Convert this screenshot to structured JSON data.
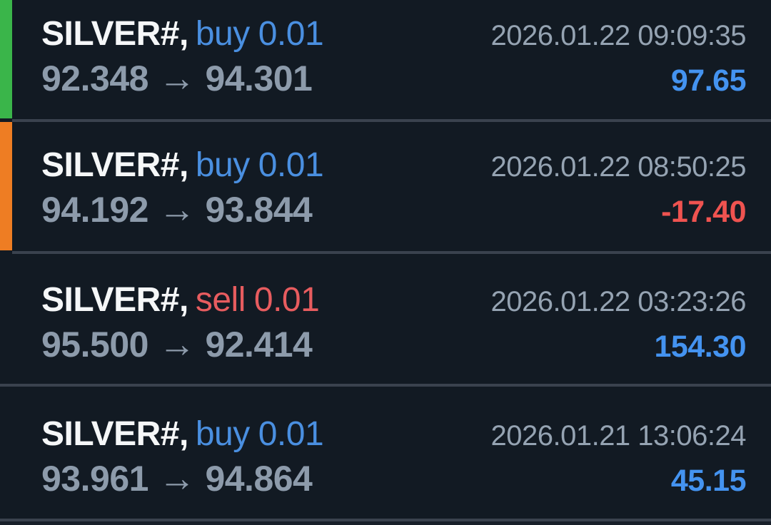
{
  "colors": {
    "background": "#121a23",
    "divider": "#3a424e",
    "symbol_text": "#f5f7f8",
    "price_text": "#8d9bab",
    "time_text": "#95a3b2",
    "buy_text": "#4a8fe0",
    "sell_text": "#e75c5f",
    "profit_text": "#4493f0",
    "loss_text": "#ef5350",
    "indicator_green": "#3ab54a",
    "indicator_orange": "#ee7d23"
  },
  "trades": [
    {
      "symbol": "SILVER#,",
      "side": "buy",
      "volume": "0.01",
      "time": "2026.01.22 09:09:35",
      "open_price": "92.348",
      "arrow": "→",
      "close_price": "94.301",
      "profit": "97.65",
      "profit_state": "profit",
      "indicator": "green"
    },
    {
      "symbol": "SILVER#,",
      "side": "buy",
      "volume": "0.01",
      "time": "2026.01.22 08:50:25",
      "open_price": "94.192",
      "arrow": "→",
      "close_price": "93.844",
      "profit": "-17.40",
      "profit_state": "loss",
      "indicator": "orange"
    },
    {
      "symbol": "SILVER#,",
      "side": "sell",
      "volume": "0.01",
      "time": "2026.01.22 03:23:26",
      "open_price": "95.500",
      "arrow": "→",
      "close_price": "92.414",
      "profit": "154.30",
      "profit_state": "profit",
      "indicator": "none"
    },
    {
      "symbol": "SILVER#,",
      "side": "buy",
      "volume": "0.01",
      "time": "2026.01.21 13:06:24",
      "open_price": "93.961",
      "arrow": "→",
      "close_price": "94.864",
      "profit": "45.15",
      "profit_state": "profit",
      "indicator": "none"
    }
  ]
}
